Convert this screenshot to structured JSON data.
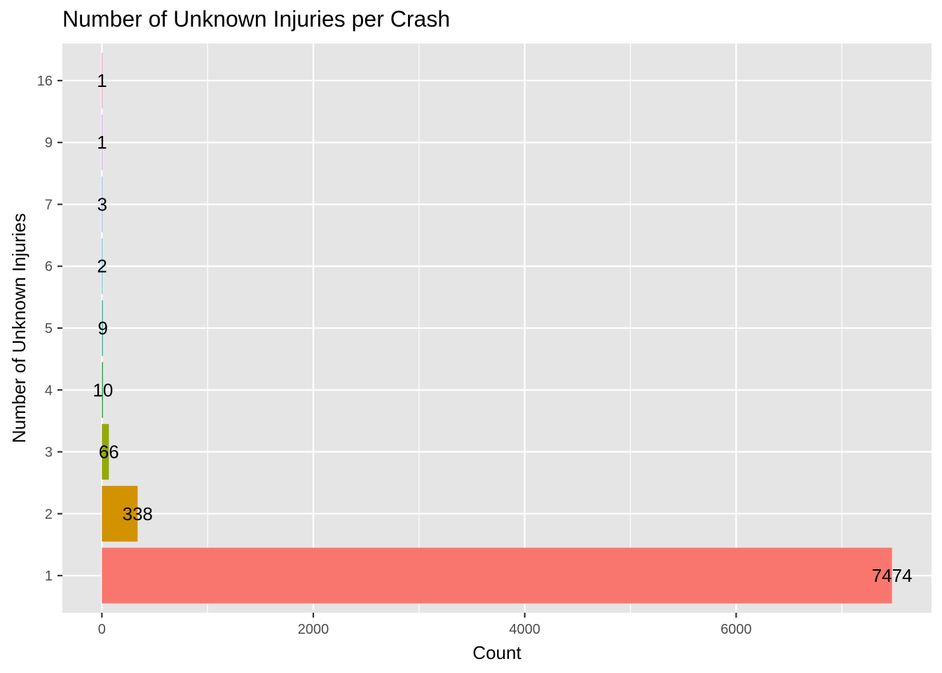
{
  "colors": {
    "panel_background": "#e5e5e5",
    "grid_line": "#ffffff",
    "tick_mark": "#333333",
    "tick_label": "#4d4d4d",
    "text": "#000000"
  },
  "chart_data": {
    "type": "bar",
    "orientation": "horizontal",
    "title": "Number of Unknown Injuries per Crash",
    "xlabel": "Count",
    "ylabel": "Number of Unknown Injuries",
    "categories": [
      "1",
      "2",
      "3",
      "4",
      "5",
      "6",
      "7",
      "9",
      "16"
    ],
    "values": [
      7474,
      338,
      66,
      10,
      9,
      2,
      3,
      1,
      1
    ],
    "value_labels": [
      "7474",
      "338",
      "66",
      "10",
      "9",
      "2",
      "3",
      "1",
      "1"
    ],
    "bar_colors": [
      "#F8766D",
      "#D39200",
      "#93AA00",
      "#00BA38",
      "#00C19F",
      "#00B9E3",
      "#619CFF",
      "#DB72FB",
      "#FF61C3"
    ],
    "x_ticks": [
      0,
      2000,
      4000,
      6000
    ],
    "x_tick_labels": [
      "0",
      "2000",
      "4000",
      "6000"
    ],
    "xlim": [
      -373.7,
      7847.7
    ],
    "grid": true,
    "legend": "none"
  }
}
